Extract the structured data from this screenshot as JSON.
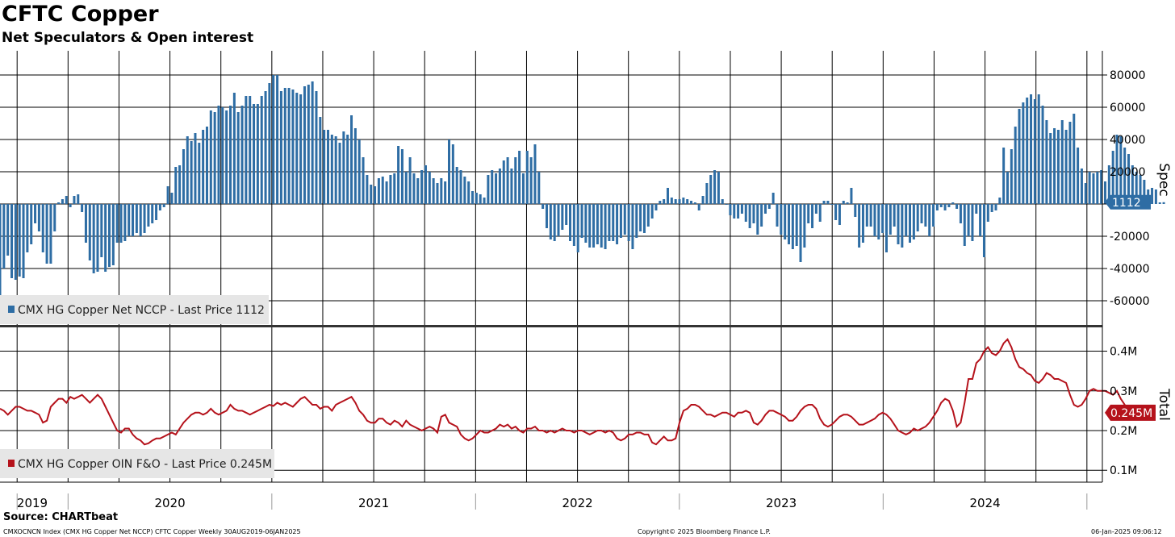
{
  "header": {
    "title": "CFTC Copper",
    "subtitle": "Net Speculators & Open interest",
    "source": "Source: CHARTbeat"
  },
  "footer": {
    "left": "CMXOCNCN Index (CMX HG Copper Net NCCP) CFTC Copper  Weekly 30AUG2019-06JAN2025",
    "center": "Copyright© 2025 Bloomberg Finance L.P.",
    "right": "06-Jan-2025 09:06:12"
  },
  "colors": {
    "spec": "#2E6DA4",
    "total": "#B5121B",
    "grid": "#000000"
  },
  "chart_data": [
    {
      "type": "bar",
      "name": "CMX HG Copper Net NCCP",
      "legend": "CMX HG Copper Net NCCP - Last Price 1112",
      "ylabel": "Spec",
      "last_value": 1112,
      "last_label": "1112",
      "ylim": [
        -75000,
        95000
      ],
      "yticks": [
        80000,
        60000,
        40000,
        20000,
        0,
        -20000,
        -40000,
        -60000
      ],
      "ytick_labels": [
        "80000",
        "60000",
        "40000",
        "20000",
        "",
        "-20000",
        "-40000",
        "-60000"
      ],
      "x_start": 2019.666,
      "x_step": 0.019165,
      "values": [
        -58000,
        -40000,
        -32000,
        -46000,
        -47000,
        -45000,
        -46000,
        -30000,
        -25000,
        -12000,
        -17000,
        -30000,
        -37000,
        -37000,
        -17000,
        1000,
        3000,
        5000,
        -2000,
        5000,
        6000,
        -5000,
        -24000,
        -35000,
        -43000,
        -42000,
        -33000,
        -42000,
        -39000,
        -38000,
        -24000,
        -24000,
        -23000,
        -20000,
        -20000,
        -18000,
        -20000,
        -18000,
        -14000,
        -12000,
        -10000,
        -4000,
        -2000,
        11000,
        7000,
        23000,
        24000,
        34000,
        42000,
        39000,
        44000,
        38000,
        46000,
        48000,
        58000,
        57000,
        61000,
        60000,
        58000,
        61000,
        69000,
        57000,
        61000,
        67000,
        67000,
        62000,
        62000,
        67000,
        70000,
        75000,
        80000,
        80000,
        70000,
        72000,
        72000,
        71000,
        69000,
        68000,
        73000,
        74000,
        76000,
        70000,
        54000,
        46000,
        46000,
        43000,
        42000,
        38000,
        45000,
        43000,
        55000,
        47000,
        40000,
        29000,
        18000,
        12000,
        11000,
        16000,
        17000,
        14000,
        18000,
        19000,
        36000,
        34000,
        20000,
        29000,
        19000,
        16000,
        21000,
        24000,
        20000,
        16000,
        13000,
        16000,
        14000,
        40000,
        37000,
        23000,
        21000,
        17000,
        14000,
        8000,
        7000,
        6000,
        4000,
        18000,
        21000,
        19000,
        22000,
        27000,
        29000,
        22000,
        29000,
        33000,
        19000,
        33000,
        29000,
        37000,
        20000,
        -3000,
        -15000,
        -22000,
        -23000,
        -20000,
        -16000,
        -13000,
        -23000,
        -26000,
        -30000,
        -21000,
        -24000,
        -27000,
        -27000,
        -25000,
        -27000,
        -28000,
        -23000,
        -23000,
        -25000,
        -21000,
        -19000,
        -23000,
        -28000,
        -21000,
        -17000,
        -18000,
        -14000,
        -9000,
        -4000,
        2000,
        3000,
        10000,
        4000,
        3000,
        3000,
        4000,
        3000,
        2000,
        1000,
        -4000,
        5000,
        13000,
        18000,
        21000,
        20000,
        3000,
        0,
        -7000,
        -9000,
        -9000,
        -6000,
        -11000,
        -15000,
        -12000,
        -19000,
        -14000,
        -6000,
        -3000,
        7000,
        -14000,
        -19000,
        -22000,
        -25000,
        -28000,
        -26000,
        -36000,
        -27000,
        -12000,
        -15000,
        -6000,
        -11000,
        2000,
        2000,
        0,
        -10000,
        -13000,
        2000,
        1000,
        10000,
        -8000,
        -27000,
        -24000,
        -14000,
        -14000,
        -20000,
        -22000,
        -18000,
        -30000,
        -19000,
        -14000,
        -25000,
        -27000,
        -20000,
        -24000,
        -22000,
        -17000,
        -12000,
        -14000,
        -20000,
        -14000,
        -4000,
        -2000,
        -4000,
        -2000,
        1000,
        -3000,
        -12000,
        -26000,
        -20000,
        -23000,
        -6000,
        -20000,
        -33000,
        -11000,
        -5000,
        -4000,
        4000,
        35000,
        20000,
        34000,
        48000,
        59000,
        63000,
        66000,
        68000,
        65000,
        68000,
        61000,
        52000,
        44000,
        47000,
        46000,
        52000,
        46000,
        51000,
        56000,
        35000,
        22000,
        13000,
        20000,
        19000,
        20000,
        21000,
        14000,
        24000,
        33000,
        43000,
        42000,
        35000,
        31000,
        24000,
        20000,
        18000,
        15000,
        9000,
        10000,
        9000,
        1000,
        1112
      ]
    },
    {
      "type": "line",
      "name": "CMX HG Copper OIN F&O",
      "legend": "CMX HG Copper OIN F&O - Last Price 0.245M",
      "ylabel": "Total",
      "last_value": 0.245,
      "last_label": "0.245M",
      "ylim": [
        0.07,
        0.46
      ],
      "yticks": [
        0.1,
        0.2,
        0.3,
        0.4
      ],
      "ytick_labels": [
        "0.1M",
        "0.2M",
        "0.3M",
        "0.4M"
      ],
      "x_start": 2019.666,
      "x_step": 0.019165,
      "values": [
        0.255,
        0.25,
        0.24,
        0.25,
        0.26,
        0.26,
        0.255,
        0.25,
        0.25,
        0.245,
        0.24,
        0.22,
        0.225,
        0.26,
        0.27,
        0.28,
        0.28,
        0.27,
        0.285,
        0.28,
        0.285,
        0.29,
        0.28,
        0.27,
        0.28,
        0.29,
        0.28,
        0.26,
        0.24,
        0.22,
        0.2,
        0.195,
        0.205,
        0.205,
        0.19,
        0.18,
        0.175,
        0.165,
        0.168,
        0.175,
        0.18,
        0.18,
        0.185,
        0.19,
        0.195,
        0.19,
        0.205,
        0.22,
        0.23,
        0.24,
        0.245,
        0.245,
        0.24,
        0.245,
        0.255,
        0.245,
        0.24,
        0.245,
        0.25,
        0.265,
        0.255,
        0.25,
        0.25,
        0.245,
        0.24,
        0.245,
        0.25,
        0.255,
        0.26,
        0.265,
        0.262,
        0.27,
        0.265,
        0.27,
        0.265,
        0.26,
        0.27,
        0.28,
        0.285,
        0.275,
        0.265,
        0.265,
        0.255,
        0.26,
        0.26,
        0.25,
        0.265,
        0.27,
        0.275,
        0.28,
        0.285,
        0.27,
        0.25,
        0.24,
        0.225,
        0.22,
        0.22,
        0.23,
        0.23,
        0.22,
        0.215,
        0.225,
        0.22,
        0.21,
        0.225,
        0.215,
        0.21,
        0.205,
        0.2,
        0.205,
        0.21,
        0.205,
        0.195,
        0.235,
        0.24,
        0.22,
        0.215,
        0.21,
        0.19,
        0.18,
        0.175,
        0.18,
        0.19,
        0.2,
        0.195,
        0.195,
        0.2,
        0.205,
        0.215,
        0.21,
        0.215,
        0.205,
        0.21,
        0.2,
        0.195,
        0.205,
        0.205,
        0.21,
        0.2,
        0.2,
        0.195,
        0.2,
        0.195,
        0.2,
        0.205,
        0.2,
        0.2,
        0.195,
        0.2,
        0.2,
        0.195,
        0.19,
        0.195,
        0.2,
        0.2,
        0.195,
        0.2,
        0.195,
        0.18,
        0.175,
        0.18,
        0.19,
        0.19,
        0.195,
        0.195,
        0.19,
        0.19,
        0.17,
        0.165,
        0.175,
        0.185,
        0.175,
        0.175,
        0.18,
        0.22,
        0.25,
        0.255,
        0.265,
        0.265,
        0.26,
        0.25,
        0.24,
        0.24,
        0.235,
        0.24,
        0.245,
        0.245,
        0.24,
        0.235,
        0.245,
        0.245,
        0.25,
        0.245,
        0.22,
        0.215,
        0.225,
        0.24,
        0.25,
        0.25,
        0.245,
        0.24,
        0.235,
        0.225,
        0.225,
        0.235,
        0.25,
        0.26,
        0.265,
        0.265,
        0.255,
        0.23,
        0.215,
        0.21,
        0.215,
        0.225,
        0.235,
        0.24,
        0.24,
        0.235,
        0.225,
        0.215,
        0.215,
        0.22,
        0.225,
        0.23,
        0.24,
        0.245,
        0.24,
        0.23,
        0.215,
        0.2,
        0.195,
        0.19,
        0.195,
        0.205,
        0.2,
        0.205,
        0.21,
        0.22,
        0.235,
        0.25,
        0.27,
        0.28,
        0.275,
        0.25,
        0.21,
        0.22,
        0.27,
        0.33,
        0.33,
        0.37,
        0.38,
        0.4,
        0.41,
        0.395,
        0.39,
        0.4,
        0.42,
        0.43,
        0.41,
        0.38,
        0.36,
        0.355,
        0.345,
        0.34,
        0.325,
        0.32,
        0.33,
        0.345,
        0.34,
        0.33,
        0.33,
        0.325,
        0.32,
        0.29,
        0.265,
        0.26,
        0.265,
        0.28,
        0.3,
        0.305,
        0.3,
        0.3,
        0.3,
        0.295,
        0.29,
        0.3,
        0.28,
        0.265,
        0.24,
        0.245,
        0.245,
        0.245,
        0.24,
        0.245,
        0.245
      ]
    }
  ],
  "xaxis": {
    "years": [
      "2019",
      "2020",
      "2021",
      "2022",
      "2023",
      "2024"
    ],
    "year_centers": [
      2019.68,
      2020.5,
      2021.5,
      2022.5,
      2023.5,
      2024.5
    ],
    "year_boundaries": [
      2020,
      2021,
      2022,
      2023,
      2024,
      2025
    ],
    "quarter_lines": [
      2019.75,
      2020,
      2020.25,
      2020.5,
      2020.75,
      2021,
      2021.25,
      2021.5,
      2021.75,
      2022,
      2022.25,
      2022.5,
      2022.75,
      2023,
      2023.25,
      2023.5,
      2023.75,
      2024,
      2024.25,
      2024.5,
      2024.75,
      2025
    ]
  }
}
